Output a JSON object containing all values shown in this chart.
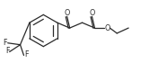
{
  "bg_color": "#ffffff",
  "line_color": "#2a2a2a",
  "line_width": 0.9,
  "font_size": 5.8,
  "figsize": [
    1.76,
    0.7
  ],
  "dpi": 100,
  "xlim": [
    0,
    176
  ],
  "ylim": [
    0,
    70
  ]
}
